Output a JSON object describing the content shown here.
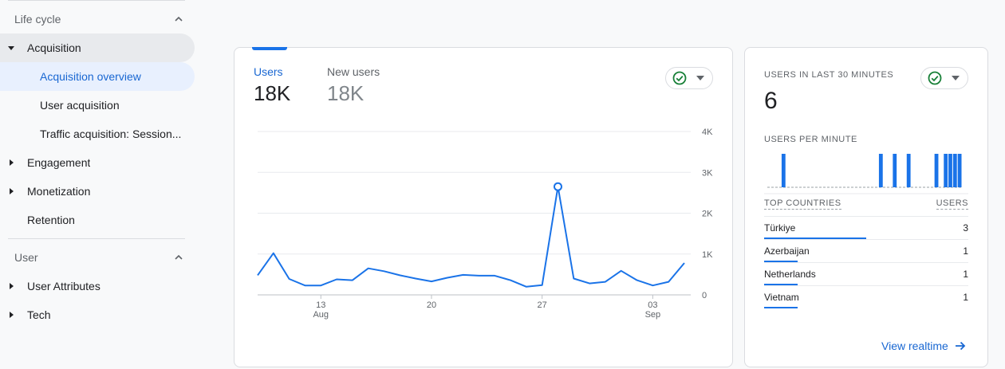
{
  "sidebar": {
    "lifecycle_label": "Life cycle",
    "user_label": "User",
    "items": [
      {
        "label": "Acquisition"
      },
      {
        "label": "Acquisition overview"
      },
      {
        "label": "User acquisition"
      },
      {
        "label": "Traffic acquisition: Session..."
      },
      {
        "label": "Engagement"
      },
      {
        "label": "Monetization"
      },
      {
        "label": "Retention"
      },
      {
        "label": "User Attributes"
      },
      {
        "label": "Tech"
      }
    ]
  },
  "main_card": {
    "metrics": [
      {
        "label": "Users",
        "value": "18K"
      },
      {
        "label": "New users",
        "value": "18K"
      }
    ]
  },
  "chart_data": {
    "type": "line",
    "title": "",
    "xlabel": "",
    "ylabel": "",
    "ylim": [
      0,
      4000
    ],
    "yticks": [
      0,
      1000,
      2000,
      3000,
      4000
    ],
    "ytick_labels": [
      "0",
      "1K",
      "2K",
      "3K",
      "4K"
    ],
    "x_start_day": 9,
    "x_tick_labels": [
      {
        "day": 13,
        "line1": "13",
        "line2": "Aug"
      },
      {
        "day": 20,
        "line1": "20",
        "line2": ""
      },
      {
        "day": 27,
        "line1": "27",
        "line2": ""
      },
      {
        "day": 34,
        "line1": "03",
        "line2": "Sep"
      }
    ],
    "series": [
      {
        "values": [
          480,
          1020,
          390,
          230,
          230,
          380,
          360,
          650,
          580,
          480,
          400,
          330,
          420,
          490,
          470,
          470,
          360,
          200,
          240,
          2650,
          400,
          280,
          320,
          590,
          360,
          230,
          320,
          780
        ],
        "highlight_index": 19
      }
    ],
    "color": "#1a73e8"
  },
  "realtime": {
    "title": "USERS IN LAST 30 MINUTES",
    "value": "6",
    "per_minute_label": "USERS PER MINUTE",
    "per_minute": [
      0,
      0,
      0,
      1,
      0,
      0,
      0,
      0,
      0,
      0,
      0,
      0,
      0,
      0,
      0,
      0,
      0,
      0,
      0,
      0,
      0,
      0,
      0,
      0,
      1,
      0,
      0,
      1,
      0,
      0,
      1,
      0,
      0,
      0,
      0,
      0,
      1,
      0,
      1,
      1,
      1,
      1
    ],
    "countries_header": "TOP COUNTRIES",
    "users_header": "USERS",
    "countries": [
      {
        "name": "Türkiye",
        "users": "3",
        "share": 1.0
      },
      {
        "name": "Azerbaijan",
        "users": "1",
        "share": 0.33
      },
      {
        "name": "Netherlands",
        "users": "1",
        "share": 0.33
      },
      {
        "name": "Vietnam",
        "users": "1",
        "share": 0.33
      }
    ],
    "link_label": "View realtime"
  },
  "colors": {
    "accent": "#1a73e8",
    "ok_green": "#188038"
  },
  "icons": {
    "status": "check-circle-icon",
    "dropdown": "caret-down-icon",
    "arrow": "arrow-right-icon"
  }
}
